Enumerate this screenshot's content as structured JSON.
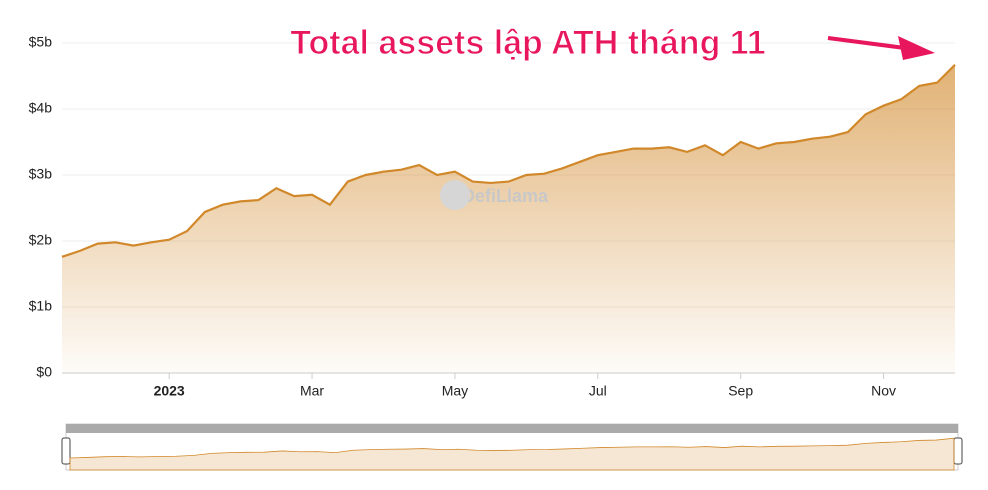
{
  "chart_data": {
    "type": "area",
    "annotation": "Total assets lập ATH tháng 11",
    "watermark": "DefiLlama",
    "color": "#d1882a",
    "categories": [
      null,
      null,
      null,
      null,
      null,
      null,
      "2023",
      null,
      null,
      null,
      null,
      null,
      null,
      null,
      "Mar",
      null,
      null,
      null,
      null,
      null,
      null,
      null,
      "May",
      null,
      null,
      null,
      null,
      null,
      null,
      null,
      "Jul",
      null,
      null,
      null,
      null,
      null,
      null,
      null,
      "Sep",
      null,
      null,
      null,
      null,
      null,
      null,
      null,
      "Nov",
      null,
      null,
      null,
      null
    ],
    "values": [
      1.76,
      1.85,
      1.96,
      1.98,
      1.93,
      1.98,
      2.02,
      2.15,
      2.44,
      2.55,
      2.6,
      2.62,
      2.8,
      2.68,
      2.7,
      2.55,
      2.9,
      3.0,
      3.05,
      3.08,
      3.15,
      3.0,
      3.05,
      2.9,
      2.88,
      2.9,
      3.0,
      3.02,
      3.1,
      3.2,
      3.3,
      3.35,
      3.4,
      3.4,
      3.42,
      3.35,
      3.45,
      3.3,
      3.5,
      3.4,
      3.48,
      3.5,
      3.55,
      3.58,
      3.65,
      3.92,
      4.05,
      4.15,
      4.35,
      4.4,
      4.67
    ],
    "ylim": [
      0,
      5
    ],
    "yticks": [
      {
        "value": 0,
        "label": "$0"
      },
      {
        "value": 1,
        "label": "$1b"
      },
      {
        "value": 2,
        "label": "$2b"
      },
      {
        "value": 3,
        "label": "$3b"
      },
      {
        "value": 4,
        "label": "$4b"
      },
      {
        "value": 5,
        "label": "$5b"
      }
    ],
    "grid": true
  }
}
